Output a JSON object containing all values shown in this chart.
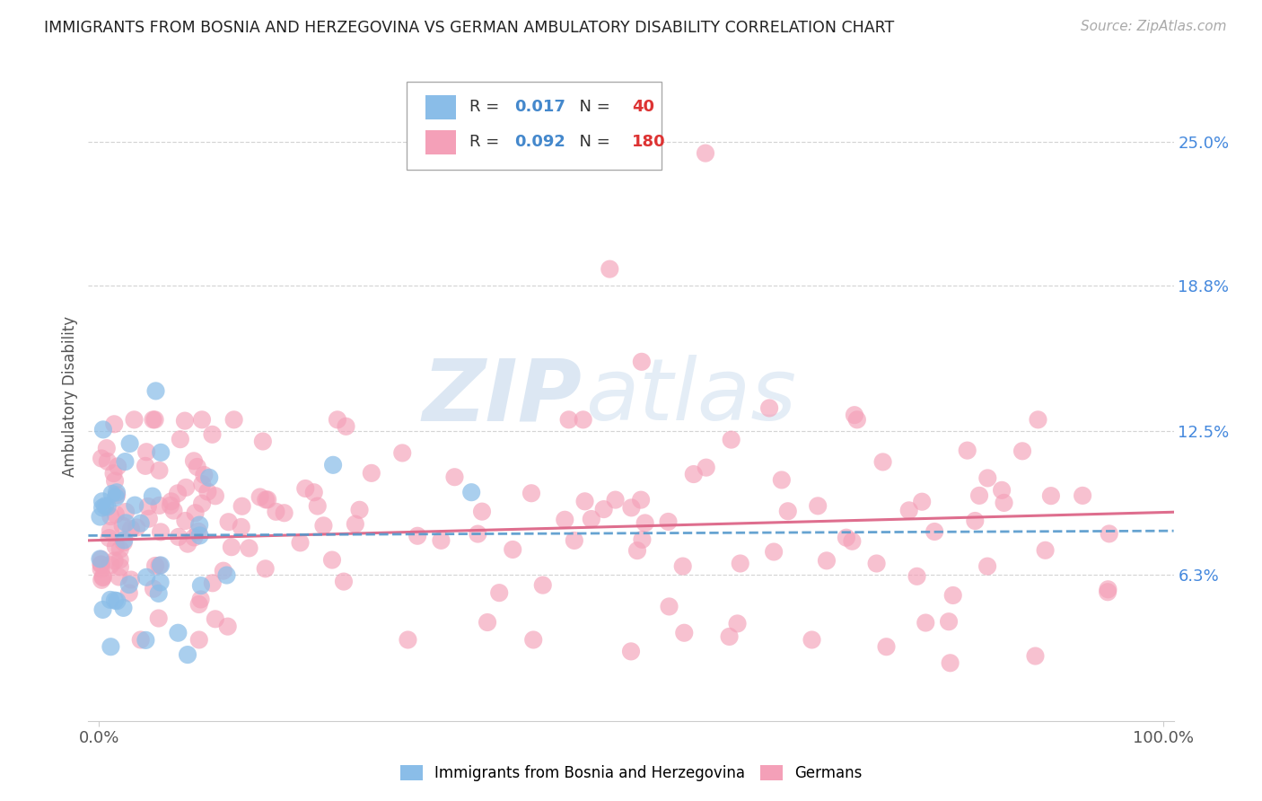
{
  "title": "IMMIGRANTS FROM BOSNIA AND HERZEGOVINA VS GERMAN AMBULATORY DISABILITY CORRELATION CHART",
  "source": "Source: ZipAtlas.com",
  "ylabel": "Ambulatory Disability",
  "watermark_zip": "ZIP",
  "watermark_atlas": "atlas",
  "series1_label": "Immigrants from Bosnia and Herzegovina",
  "series2_label": "Germans",
  "series1_color": "#8abde8",
  "series2_color": "#f4a0b8",
  "series1_R": 0.017,
  "series1_N": 40,
  "series2_R": 0.092,
  "series2_N": 180,
  "xlim": [
    -1,
    101
  ],
  "ylim": [
    0,
    28
  ],
  "ytick_vals": [
    6.3,
    12.5,
    18.8,
    25.0
  ],
  "ytick_labels": [
    "6.3%",
    "12.5%",
    "18.8%",
    "25.0%"
  ],
  "xtick_vals": [
    0,
    100
  ],
  "xtick_labels": [
    "0.0%",
    "100.0%"
  ],
  "bg_color": "#ffffff",
  "grid_color": "#d0d0d0",
  "title_color": "#222222",
  "source_color": "#aaaaaa",
  "axis_label_color": "#555555",
  "ytick_color": "#4488dd",
  "xtick_color": "#555555",
  "trend1_color": "#5599cc",
  "trend2_color": "#dd6688",
  "trend1_style": "--",
  "trend2_style": "-",
  "legend_R_color": "#4488cc",
  "legend_N_color": "#dd3333",
  "watermark_color": "#c5d8ec"
}
